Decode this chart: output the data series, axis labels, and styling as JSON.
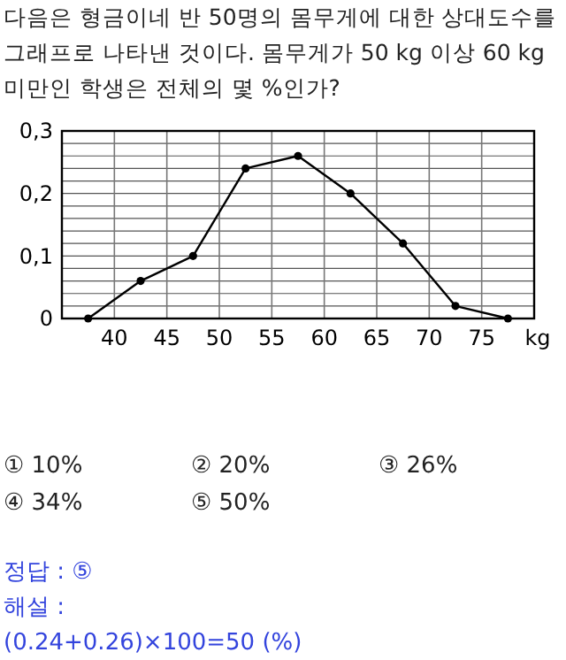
{
  "chart_data": {
    "type": "line",
    "title": "다음은 형금이네 반 50명의 몸무게에 대한 상대도수를 그래프로 나타낸 것이다. 몸무게가 50 kg 이상 60 kg 미만인 학생은 전체의 몇 %인가?",
    "xlabel": "kg",
    "x": [
      37.5,
      42.5,
      47.5,
      52.5,
      57.5,
      62.5,
      67.5,
      72.5,
      77.5
    ],
    "series": [
      {
        "color": "#000000",
        "values": [
          0,
          0.06,
          0.1,
          0.24,
          0.26,
          0.2,
          0.12,
          0.02,
          0
        ]
      }
    ],
    "xlim": [
      35,
      80
    ],
    "xticks": [
      40,
      45,
      50,
      55,
      60,
      65,
      70,
      75
    ],
    "ylim": [
      0,
      0.3
    ],
    "yticks": [
      0,
      {
        "value": 0.02,
        "label": null
      },
      {
        "value": 0.04,
        "label": null
      },
      {
        "value": 0.06,
        "label": null
      },
      {
        "value": 0.08,
        "label": null
      },
      {
        "value": 0.1,
        "label": "0,1"
      },
      {
        "value": 0.12,
        "label": null
      },
      {
        "value": 0.14,
        "label": null
      },
      {
        "value": 0.16,
        "label": null
      },
      {
        "value": 0.18,
        "label": null
      },
      {
        "value": 0.2,
        "label": "0,2"
      },
      {
        "value": 0.22,
        "label": null
      },
      {
        "value": 0.24,
        "label": null
      },
      {
        "value": 0.26,
        "label": null
      },
      {
        "value": 0.28,
        "label": null
      },
      {
        "value": 0.3,
        "label": "0,3"
      }
    ],
    "grid": true,
    "marker": "circle",
    "line_style": "solid",
    "annotations": [
      "① 10%",
      "② 20%",
      "③ 26%",
      "④ 34%",
      "⑤ 50%",
      "정답 : ⑤",
      "해설 :",
      "(0.24+0.26)×100=50 (%)"
    ]
  }
}
